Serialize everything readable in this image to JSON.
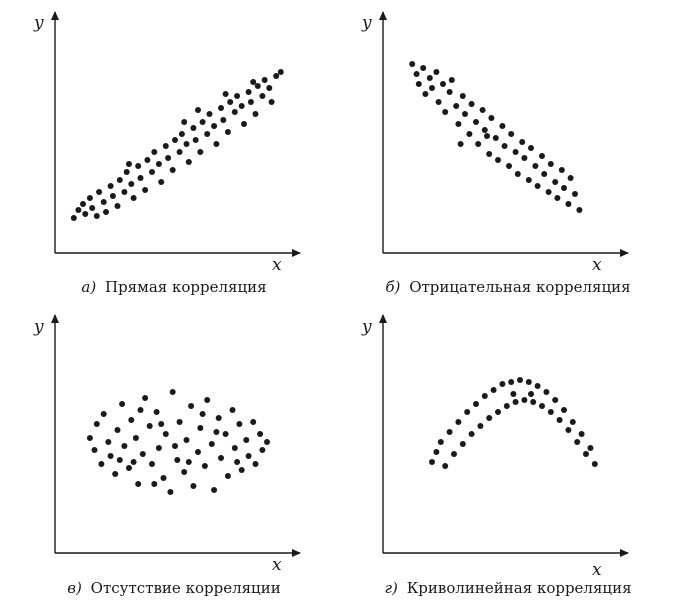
{
  "colors": {
    "ink": "#1a1a1a",
    "background": "#ffffff"
  },
  "chart_data": [
    {
      "type": "scatter",
      "letter": "а)",
      "title": "Прямая корреляция",
      "xlabel": "x",
      "ylabel": "y",
      "xlim": [
        0,
        10
      ],
      "ylim": [
        0,
        10
      ],
      "grid": false,
      "points": [
        [
          0.6,
          1.2
        ],
        [
          0.8,
          1.6
        ],
        [
          1.0,
          1.9
        ],
        [
          1.1,
          1.4
        ],
        [
          1.3,
          2.2
        ],
        [
          1.4,
          1.7
        ],
        [
          1.6,
          1.3
        ],
        [
          1.7,
          2.5
        ],
        [
          1.9,
          2.0
        ],
        [
          2.0,
          1.5
        ],
        [
          2.2,
          2.8
        ],
        [
          2.3,
          2.3
        ],
        [
          2.5,
          1.8
        ],
        [
          2.6,
          3.1
        ],
        [
          2.8,
          2.5
        ],
        [
          2.9,
          3.5
        ],
        [
          3.1,
          2.9
        ],
        [
          3.2,
          2.2
        ],
        [
          3.4,
          3.8
        ],
        [
          3.5,
          3.2
        ],
        [
          3.7,
          2.6
        ],
        [
          3.8,
          4.1
        ],
        [
          4.0,
          3.5
        ],
        [
          4.1,
          4.5
        ],
        [
          4.3,
          3.9
        ],
        [
          4.4,
          3.0
        ],
        [
          4.6,
          4.8
        ],
        [
          4.7,
          4.2
        ],
        [
          4.9,
          3.6
        ],
        [
          5.0,
          5.1
        ],
        [
          5.2,
          4.5
        ],
        [
          5.3,
          5.4
        ],
        [
          5.5,
          4.9
        ],
        [
          5.6,
          4.0
        ],
        [
          5.8,
          5.7
        ],
        [
          5.9,
          5.1
        ],
        [
          6.1,
          4.5
        ],
        [
          6.2,
          6.0
        ],
        [
          6.4,
          5.4
        ],
        [
          6.5,
          6.4
        ],
        [
          6.7,
          5.8
        ],
        [
          6.8,
          4.9
        ],
        [
          7.0,
          6.7
        ],
        [
          7.1,
          6.1
        ],
        [
          7.3,
          5.5
        ],
        [
          7.4,
          7.0
        ],
        [
          7.6,
          6.5
        ],
        [
          7.7,
          7.3
        ],
        [
          7.9,
          6.8
        ],
        [
          8.0,
          5.9
        ],
        [
          8.2,
          7.5
        ],
        [
          8.3,
          7.0
        ],
        [
          8.5,
          6.4
        ],
        [
          8.6,
          7.8
        ],
        [
          8.8,
          7.3
        ],
        [
          8.9,
          8.1
        ],
        [
          9.1,
          7.7
        ],
        [
          9.2,
          7.0
        ],
        [
          9.4,
          8.3
        ],
        [
          9.6,
          8.5
        ],
        [
          8.4,
          8.0
        ],
        [
          7.2,
          7.4
        ],
        [
          3.0,
          3.9
        ],
        [
          5.4,
          6.0
        ],
        [
          6.0,
          6.6
        ]
      ]
    },
    {
      "type": "scatter",
      "letter": "б)",
      "title": "Отрицательная корреляция",
      "xlabel": "x",
      "ylabel": "y",
      "xlim": [
        0,
        10
      ],
      "ylim": [
        0,
        10
      ],
      "grid": false,
      "points": [
        [
          1.1,
          8.9
        ],
        [
          1.3,
          8.4
        ],
        [
          1.4,
          7.9
        ],
        [
          1.6,
          8.7
        ],
        [
          1.7,
          7.4
        ],
        [
          1.9,
          8.2
        ],
        [
          2.0,
          7.7
        ],
        [
          2.2,
          8.5
        ],
        [
          2.3,
          7.0
        ],
        [
          2.5,
          7.9
        ],
        [
          2.6,
          6.5
        ],
        [
          2.8,
          7.5
        ],
        [
          2.9,
          8.1
        ],
        [
          3.1,
          6.8
        ],
        [
          3.2,
          5.9
        ],
        [
          3.4,
          7.3
        ],
        [
          3.5,
          6.4
        ],
        [
          3.7,
          5.4
        ],
        [
          3.8,
          6.9
        ],
        [
          4.0,
          6.0
        ],
        [
          4.1,
          4.9
        ],
        [
          4.3,
          6.6
        ],
        [
          4.4,
          5.6
        ],
        [
          4.6,
          4.4
        ],
        [
          4.7,
          6.2
        ],
        [
          4.9,
          5.2
        ],
        [
          5.0,
          4.1
        ],
        [
          5.2,
          5.8
        ],
        [
          5.3,
          4.8
        ],
        [
          5.5,
          3.8
        ],
        [
          5.6,
          5.4
        ],
        [
          5.8,
          4.5
        ],
        [
          5.9,
          3.4
        ],
        [
          6.1,
          5.0
        ],
        [
          6.2,
          4.2
        ],
        [
          6.4,
          3.1
        ],
        [
          6.5,
          4.7
        ],
        [
          6.7,
          3.8
        ],
        [
          6.8,
          2.8
        ],
        [
          7.0,
          4.3
        ],
        [
          7.1,
          3.4
        ],
        [
          7.3,
          2.5
        ],
        [
          7.4,
          3.9
        ],
        [
          7.6,
          3.0
        ],
        [
          7.7,
          2.2
        ],
        [
          7.9,
          3.6
        ],
        [
          8.0,
          2.7
        ],
        [
          8.2,
          1.9
        ],
        [
          8.3,
          3.2
        ],
        [
          8.5,
          2.4
        ],
        [
          8.7,
          1.6
        ],
        [
          4.5,
          5.3
        ],
        [
          3.3,
          4.9
        ]
      ]
    },
    {
      "type": "scatter",
      "letter": "в)",
      "title": "Отсутствие корреляции",
      "xlabel": "x",
      "ylabel": "y",
      "xlim": [
        0,
        10
      ],
      "ylim": [
        0,
        10
      ],
      "grid": false,
      "points": [
        [
          1.3,
          5.2
        ],
        [
          1.5,
          4.6
        ],
        [
          1.6,
          5.9
        ],
        [
          1.8,
          3.9
        ],
        [
          1.9,
          6.4
        ],
        [
          2.1,
          5.0
        ],
        [
          2.2,
          4.3
        ],
        [
          2.4,
          3.4
        ],
        [
          2.5,
          5.6
        ],
        [
          2.7,
          6.9
        ],
        [
          2.8,
          4.8
        ],
        [
          3.0,
          3.7
        ],
        [
          3.1,
          6.1
        ],
        [
          3.3,
          5.2
        ],
        [
          3.4,
          2.9
        ],
        [
          3.6,
          4.4
        ],
        [
          3.7,
          7.2
        ],
        [
          3.9,
          5.8
        ],
        [
          4.0,
          3.9
        ],
        [
          4.2,
          6.5
        ],
        [
          4.3,
          4.7
        ],
        [
          4.5,
          3.2
        ],
        [
          4.6,
          5.4
        ],
        [
          4.8,
          2.5
        ],
        [
          4.9,
          7.5
        ],
        [
          5.1,
          4.1
        ],
        [
          5.2,
          6.0
        ],
        [
          5.4,
          3.5
        ],
        [
          5.5,
          5.1
        ],
        [
          5.7,
          6.8
        ],
        [
          5.8,
          2.8
        ],
        [
          6.0,
          4.5
        ],
        [
          6.1,
          5.7
        ],
        [
          6.3,
          3.8
        ],
        [
          6.4,
          7.1
        ],
        [
          6.6,
          4.9
        ],
        [
          6.7,
          2.6
        ],
        [
          6.9,
          6.2
        ],
        [
          7.0,
          4.2
        ],
        [
          7.2,
          5.4
        ],
        [
          7.3,
          3.3
        ],
        [
          7.5,
          6.6
        ],
        [
          7.6,
          4.7
        ],
        [
          7.8,
          5.9
        ],
        [
          7.9,
          3.6
        ],
        [
          8.1,
          5.1
        ],
        [
          8.2,
          4.3
        ],
        [
          8.4,
          6.0
        ],
        [
          8.5,
          3.9
        ],
        [
          8.7,
          5.4
        ],
        [
          8.8,
          4.6
        ],
        [
          9.0,
          5.0
        ],
        [
          3.2,
          4.0
        ],
        [
          4.4,
          5.9
        ],
        [
          5.6,
          4.0
        ],
        [
          6.8,
          5.5
        ],
        [
          2.6,
          4.1
        ],
        [
          7.7,
          4.0
        ],
        [
          4.1,
          2.9
        ],
        [
          6.2,
          6.4
        ],
        [
          5.0,
          4.8
        ],
        [
          3.5,
          6.6
        ]
      ]
    },
    {
      "type": "scatter",
      "letter": "г)",
      "title": "Криволинейная корреляция",
      "xlabel": "x",
      "ylabel": "y",
      "xlim": [
        0,
        10
      ],
      "ylim": [
        0,
        10
      ],
      "grid": false,
      "points": [
        [
          2.0,
          4.0
        ],
        [
          2.2,
          4.5
        ],
        [
          2.4,
          5.0
        ],
        [
          2.6,
          3.8
        ],
        [
          2.8,
          5.5
        ],
        [
          3.0,
          4.4
        ],
        [
          3.2,
          6.0
        ],
        [
          3.4,
          4.9
        ],
        [
          3.6,
          6.5
        ],
        [
          3.8,
          5.4
        ],
        [
          4.0,
          6.9
        ],
        [
          4.2,
          5.8
        ],
        [
          4.4,
          7.3
        ],
        [
          4.6,
          6.2
        ],
        [
          4.8,
          7.6
        ],
        [
          5.0,
          6.5
        ],
        [
          5.2,
          7.9
        ],
        [
          5.4,
          6.8
        ],
        [
          5.6,
          8.0
        ],
        [
          5.8,
          7.0
        ],
        [
          6.0,
          8.1
        ],
        [
          6.2,
          7.1
        ],
        [
          6.4,
          8.0
        ],
        [
          6.6,
          7.0
        ],
        [
          6.8,
          7.8
        ],
        [
          7.0,
          6.8
        ],
        [
          7.2,
          7.5
        ],
        [
          7.4,
          6.5
        ],
        [
          7.6,
          7.1
        ],
        [
          7.8,
          6.1
        ],
        [
          8.0,
          6.6
        ],
        [
          8.2,
          5.6
        ],
        [
          8.4,
          6.0
        ],
        [
          8.6,
          5.0
        ],
        [
          8.8,
          5.4
        ],
        [
          9.0,
          4.4
        ],
        [
          9.2,
          4.7
        ],
        [
          9.4,
          3.9
        ],
        [
          5.7,
          7.4
        ],
        [
          6.5,
          7.4
        ]
      ]
    }
  ]
}
